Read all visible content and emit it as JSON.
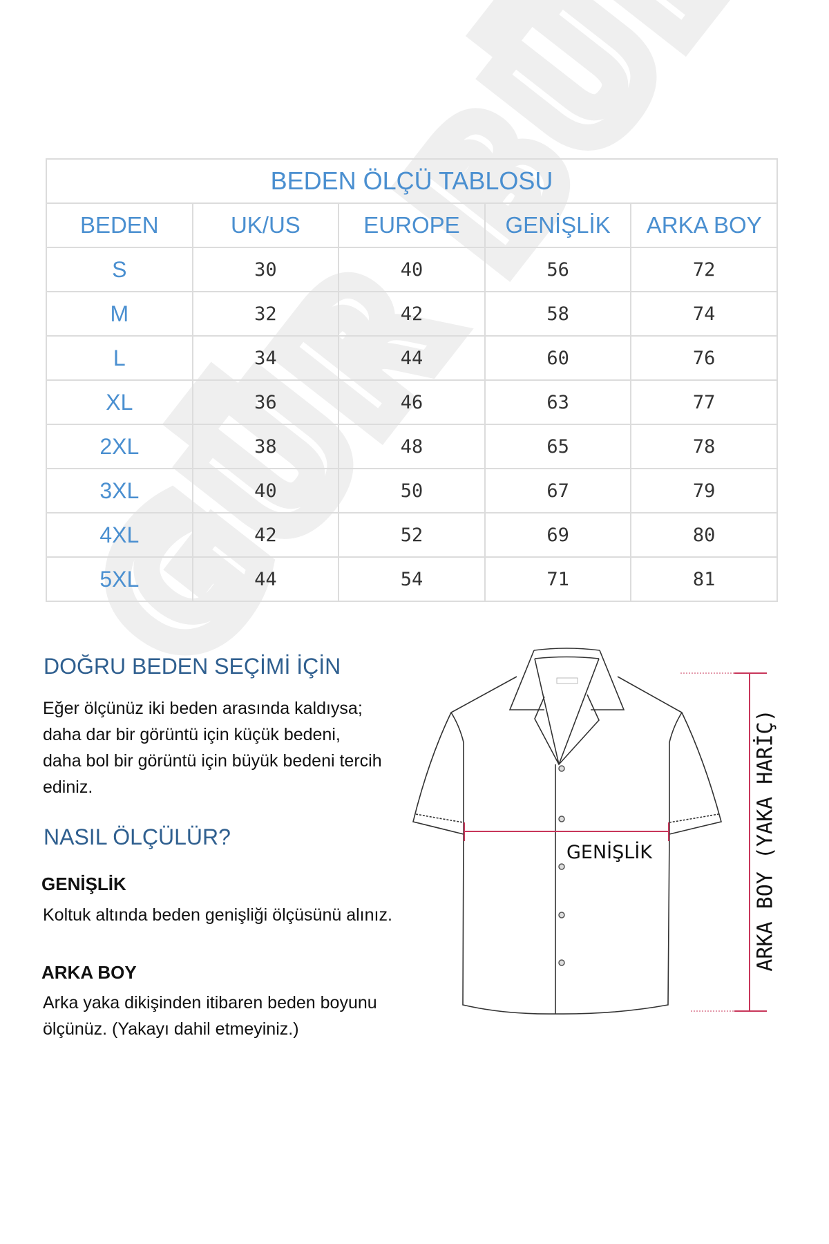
{
  "watermark": "GÜR BÜLEND",
  "table": {
    "title": "BEDEN ÖLÇÜ TABLOSU",
    "headers": [
      "BEDEN",
      "UK/US",
      "EUROPE",
      "GENİŞLİK",
      "ARKA BOY"
    ],
    "rows": [
      [
        "S",
        "30",
        "40",
        "56",
        "72"
      ],
      [
        "M",
        "32",
        "42",
        "58",
        "74"
      ],
      [
        "L",
        "34",
        "44",
        "60",
        "76"
      ],
      [
        "XL",
        "36",
        "46",
        "63",
        "77"
      ],
      [
        "2XL",
        "38",
        "48",
        "65",
        "78"
      ],
      [
        "3XL",
        "40",
        "50",
        "67",
        "79"
      ],
      [
        "4XL",
        "42",
        "52",
        "69",
        "80"
      ],
      [
        "5XL",
        "44",
        "54",
        "71",
        "81"
      ]
    ]
  },
  "guide": {
    "heading": "DOĞRU BEDEN SEÇİMİ İÇİN",
    "lines": [
      "Eğer ölçünüz iki beden arasında kaldıysa;",
      "daha dar bir görüntü için küçük bedeni,",
      "daha bol bir görüntü için büyük bedeni tercih",
      "ediniz."
    ],
    "how_heading": "NASIL ÖLÇÜLÜR?",
    "width_title": "GENİŞLİK",
    "width_text": "Koltuk altında beden genişliği ölçüsünü alınız.",
    "length_title": "ARKA BOY",
    "length_lines": [
      "Arka yaka dikişinden itibaren beden boyunu",
      "ölçünüz. (Yakayı dahil etmeyiniz.)"
    ]
  },
  "diagram": {
    "width_label": "GENİŞLİK",
    "length_label": "ARKA BOY (YAKA HARİÇ)",
    "measure_color": "#c8365a",
    "heading_color": "#2f5f8f",
    "table_color": "#4a8fd0"
  }
}
